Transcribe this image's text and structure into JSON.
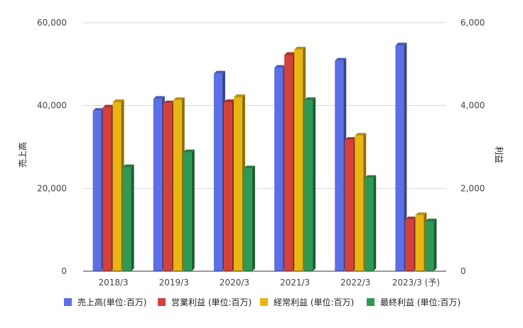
{
  "chart_data": {
    "type": "bar",
    "categories": [
      "2018/3",
      "2019/3",
      "2020/3",
      "2021/3",
      "2022/3",
      "2023/3 (予)"
    ],
    "y_left": {
      "label": "売上高",
      "ylim": [
        0,
        60000
      ],
      "ticks": [
        "0",
        "20,000",
        "40,000",
        "60,000"
      ],
      "tick_values": [
        0,
        20000,
        40000,
        60000
      ]
    },
    "y_right": {
      "label": "利益",
      "ylim": [
        0,
        6000
      ],
      "ticks": [
        "0",
        "2,000",
        "4,000",
        "6,000"
      ],
      "tick_values": [
        0,
        2000,
        4000,
        6000
      ]
    },
    "series": [
      {
        "name": "売上高(単位:百万)",
        "axis": "left",
        "color": "#5b6fe6",
        "values": [
          38700,
          41600,
          47700,
          49100,
          50800,
          54500
        ]
      },
      {
        "name": "営業利益 (単位:百万)",
        "axis": "right",
        "color": "#d2413a",
        "values": [
          3950,
          4050,
          4080,
          5220,
          3170,
          1250
        ]
      },
      {
        "name": "経常利益 (単位:百万)",
        "axis": "right",
        "color": "#e8b511",
        "values": [
          4080,
          4130,
          4200,
          5350,
          3270,
          1350
        ]
      },
      {
        "name": "最終利益 (単位:百万)",
        "axis": "right",
        "color": "#2e9a55",
        "values": [
          2510,
          2870,
          2480,
          4130,
          2250,
          1200
        ]
      }
    ],
    "grid": true,
    "legend": "bottom"
  }
}
